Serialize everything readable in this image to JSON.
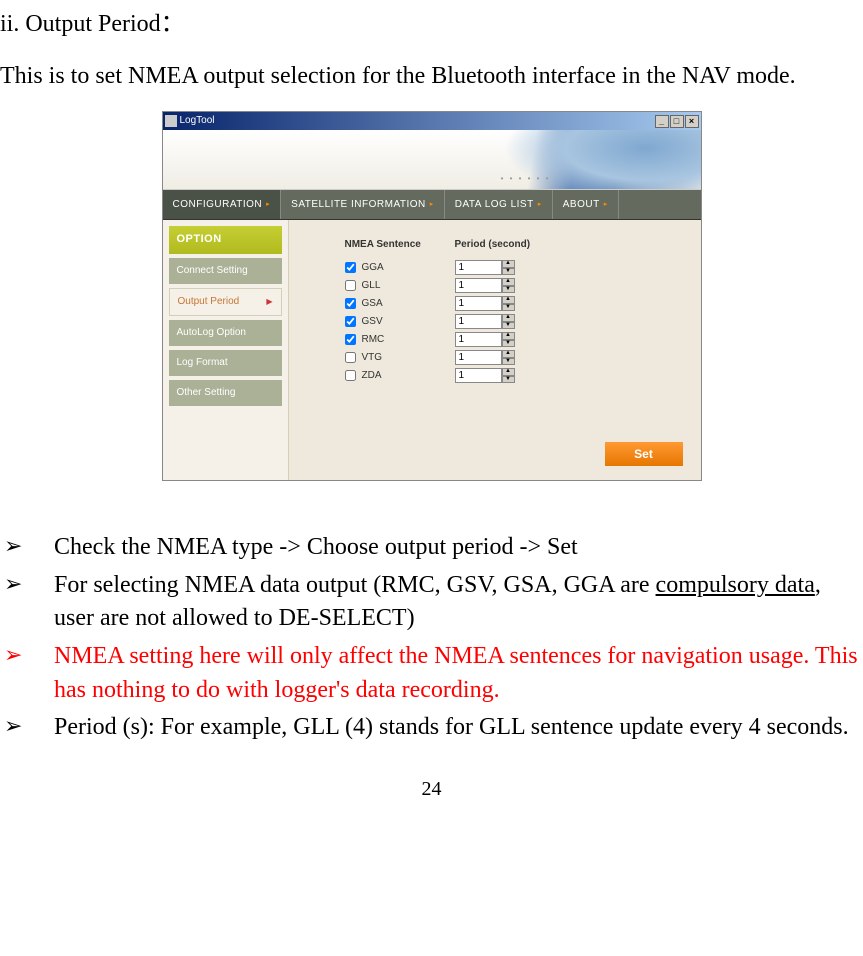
{
  "doc": {
    "heading": "ii. Output Period：",
    "intro": "This is to set NMEA output selection for the Bluetooth interface in the NAV mode.",
    "page_number": "24"
  },
  "app": {
    "title": "LogTool",
    "tabs": [
      "CONFIGURATION",
      "SATELLITE  INFORMATION",
      "DATA  LOG  LIST",
      "ABOUT"
    ],
    "sidebar": {
      "header": "OPTION",
      "items": [
        {
          "label": "Connect  Setting",
          "selected": false
        },
        {
          "label": "Output  Period",
          "selected": true
        },
        {
          "label": "AutoLog  Option",
          "selected": false
        },
        {
          "label": "Log  Format",
          "selected": false
        },
        {
          "label": "Other  Setting",
          "selected": false
        }
      ]
    },
    "panel": {
      "col1": "NMEA Sentence",
      "col2": "Period (second)",
      "rows": [
        {
          "name": "GGA",
          "checked": true,
          "period": "1"
        },
        {
          "name": "GLL",
          "checked": false,
          "period": "1"
        },
        {
          "name": "GSA",
          "checked": true,
          "period": "1"
        },
        {
          "name": "GSV",
          "checked": true,
          "period": "1"
        },
        {
          "name": "RMC",
          "checked": true,
          "period": "1"
        },
        {
          "name": "VTG",
          "checked": false,
          "period": "1"
        },
        {
          "name": "ZDA",
          "checked": false,
          "period": "1"
        }
      ],
      "set_button": "Set"
    }
  },
  "bullets": {
    "b1": "Check the NMEA type -> Choose output period -> Set",
    "b2_a": "For selecting NMEA data output (RMC, GSV, GSA, GGA are ",
    "b2_u": "compulsory data",
    "b2_b": ", user are not allowed to DE-SELECT)",
    "b3": "NMEA setting here will only affect the NMEA sentences for navigation usage. This has nothing to do with logger's data recording.",
    "b4": "Period (s): For example, GLL (4) stands for GLL sentence update every 4 seconds."
  }
}
